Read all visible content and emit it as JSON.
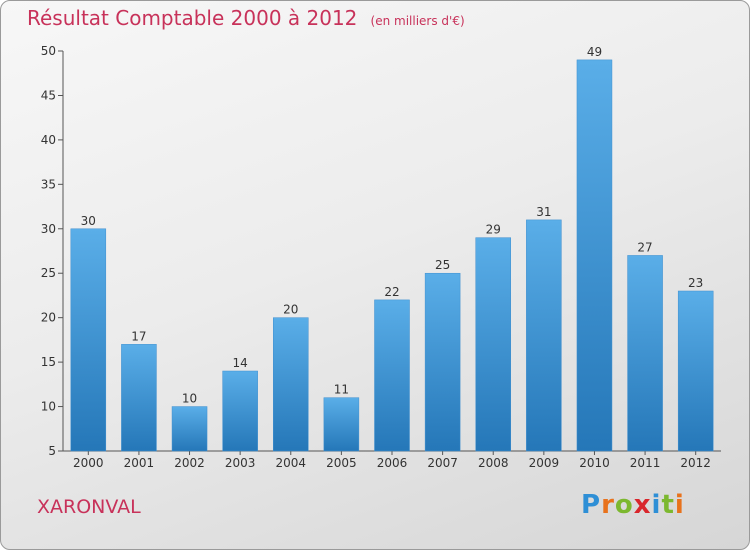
{
  "header": {
    "title": "Résultat Comptable 2000 à 2012",
    "subtitle": "(en milliers d'€)"
  },
  "footer": {
    "place": "XARONVAL",
    "brand_letters": [
      {
        "ch": "P",
        "color": "#2e8fd6"
      },
      {
        "ch": "r",
        "color": "#e8721c"
      },
      {
        "ch": "o",
        "color": "#7cb82f"
      },
      {
        "ch": "x",
        "color": "#d9262c"
      },
      {
        "ch": "i",
        "color": "#2e8fd6"
      },
      {
        "ch": "t",
        "color": "#7cb82f"
      },
      {
        "ch": "i",
        "color": "#e8721c"
      }
    ]
  },
  "chart_data": {
    "type": "bar",
    "title": "Résultat Comptable 2000 à 2012",
    "subtitle": "(en milliers d'€)",
    "categories": [
      "2000",
      "2001",
      "2002",
      "2003",
      "2004",
      "2005",
      "2006",
      "2007",
      "2008",
      "2009",
      "2010",
      "2011",
      "2012"
    ],
    "values": [
      30,
      17,
      10,
      14,
      20,
      11,
      22,
      25,
      29,
      31,
      49,
      27,
      23
    ],
    "ylim": [
      5,
      50
    ],
    "yticks": [
      5,
      10,
      15,
      20,
      25,
      30,
      35,
      40,
      45,
      50
    ],
    "xlabel": "",
    "ylabel": "",
    "grid": false,
    "colors": {
      "bar_light": "#5aaee8",
      "bar_dark": "#2577b8"
    }
  }
}
